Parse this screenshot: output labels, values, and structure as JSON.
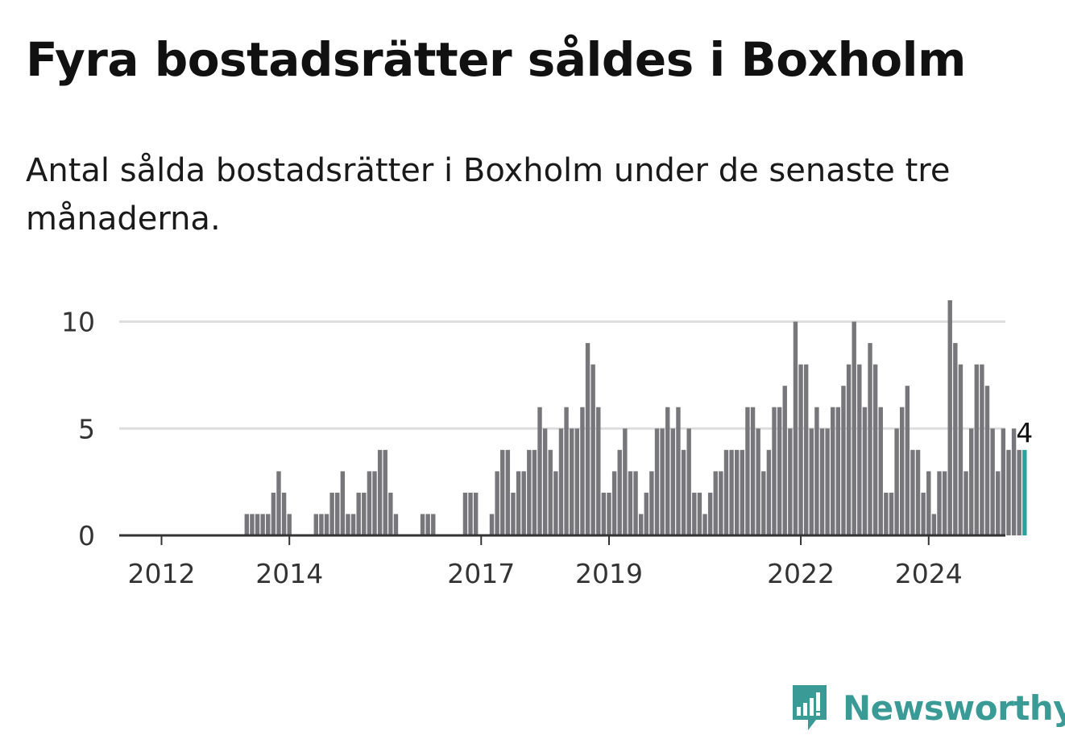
{
  "title": "Fyra bostadsrätter såldes i Boxholm",
  "subtitle": "Antal sålda bostadsrätter i Boxholm under de senaste tre månaderna.",
  "brand": {
    "name": "Newsworthy",
    "icon": "newsworthy-logo-icon",
    "color": "#3a9a96"
  },
  "colors": {
    "bar": "#77767b",
    "highlight": "#28a3a0",
    "grid": "#dddddd",
    "axis": "#333333"
  },
  "chart_data": {
    "type": "bar",
    "x_start": "2011-12",
    "interval": "month",
    "ylim": [
      0,
      11
    ],
    "yticks": [
      0,
      5,
      10
    ],
    "xticks": [
      {
        "label": "2012",
        "month": "2012-01"
      },
      {
        "label": "2014",
        "month": "2014-01"
      },
      {
        "label": "2017",
        "month": "2017-01"
      },
      {
        "label": "2019",
        "month": "2019-01"
      },
      {
        "label": "2022",
        "month": "2022-01"
      },
      {
        "label": "2024",
        "month": "2024-01"
      }
    ],
    "grid": true,
    "highlight_last": true,
    "last_value_label": "4",
    "values": [
      0,
      0,
      0,
      0,
      0,
      0,
      0,
      0,
      0,
      0,
      0,
      0,
      0,
      0,
      0,
      0,
      0,
      1,
      1,
      1,
      1,
      1,
      2,
      3,
      2,
      1,
      0,
      0,
      0,
      0,
      1,
      1,
      1,
      2,
      2,
      3,
      1,
      1,
      2,
      2,
      3,
      3,
      4,
      4,
      2,
      1,
      0,
      0,
      0,
      0,
      1,
      1,
      1,
      0,
      0,
      0,
      0,
      0,
      2,
      2,
      2,
      0,
      0,
      1,
      3,
      4,
      4,
      2,
      3,
      3,
      4,
      4,
      6,
      5,
      4,
      3,
      5,
      6,
      5,
      5,
      6,
      9,
      8,
      6,
      2,
      2,
      3,
      4,
      5,
      3,
      3,
      1,
      2,
      3,
      5,
      5,
      6,
      5,
      6,
      4,
      5,
      2,
      2,
      1,
      2,
      3,
      3,
      4,
      4,
      4,
      4,
      6,
      6,
      5,
      3,
      4,
      6,
      6,
      7,
      5,
      10,
      8,
      8,
      5,
      6,
      5,
      5,
      6,
      6,
      7,
      8,
      10,
      8,
      6,
      9,
      8,
      6,
      2,
      2,
      5,
      6,
      7,
      4,
      4,
      2,
      3,
      1,
      3,
      3,
      11,
      9,
      8,
      3,
      5,
      8,
      8,
      7,
      5,
      3,
      5,
      4,
      5,
      4,
      4
    ]
  }
}
